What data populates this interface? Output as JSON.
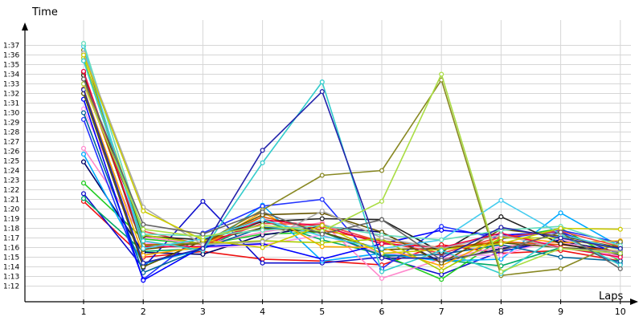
{
  "chart_data": {
    "type": "line",
    "title": "",
    "ylabel": "Time",
    "xlabel": "Laps",
    "grid": true,
    "legend": "none",
    "x": [
      1,
      2,
      3,
      4,
      5,
      6,
      7,
      8,
      9,
      10
    ],
    "ylim": [
      71,
      98
    ],
    "yticks": [
      {
        "v": 72,
        "label": "1:12"
      },
      {
        "v": 73,
        "label": "1:13"
      },
      {
        "v": 74,
        "label": "1:14"
      },
      {
        "v": 75,
        "label": "1:15"
      },
      {
        "v": 76,
        "label": "1:16"
      },
      {
        "v": 77,
        "label": "1:17"
      },
      {
        "v": 78,
        "label": "1:18"
      },
      {
        "v": 79,
        "label": "1:19"
      },
      {
        "v": 80,
        "label": "1:20"
      },
      {
        "v": 81,
        "label": "1:21"
      },
      {
        "v": 82,
        "label": "1:22"
      },
      {
        "v": 83,
        "label": "1:23"
      },
      {
        "v": 84,
        "label": "1:24"
      },
      {
        "v": 85,
        "label": "1:25"
      },
      {
        "v": 86,
        "label": "1:26"
      },
      {
        "v": 87,
        "label": "1:27"
      },
      {
        "v": 88,
        "label": "1:28"
      },
      {
        "v": 89,
        "label": "1:29"
      },
      {
        "v": 90,
        "label": "1:30"
      },
      {
        "v": 91,
        "label": "1:31"
      },
      {
        "v": 92,
        "label": "1:32"
      },
      {
        "v": 93,
        "label": "1:33"
      },
      {
        "v": 94,
        "label": "1:34"
      },
      {
        "v": 95,
        "label": "1:35"
      },
      {
        "v": 96,
        "label": "1:36"
      },
      {
        "v": 97,
        "label": "1:37"
      }
    ],
    "xticks": [
      "1",
      "2",
      "3",
      "4",
      "5",
      "6",
      "7",
      "8",
      "9",
      "10"
    ],
    "series": [
      {
        "color": "#ee1111",
        "values": [
          80.8,
          75.0,
          75.6,
          74.8,
          74.6,
          74.2,
          76.3,
          75.4,
          75.7,
          74.6
        ]
      },
      {
        "color": "#1111cc",
        "values": [
          81.6,
          73.9,
          80.8,
          74.4,
          74.4,
          75.0,
          73.2,
          75.6,
          76.8,
          74.3
        ]
      },
      {
        "color": "#00aa66",
        "values": [
          81.1,
          75.6,
          75.9,
          78.8,
          76.8,
          75.3,
          74.7,
          74.1,
          76.0,
          75.2
        ]
      },
      {
        "color": "#22cc22",
        "values": [
          82.7,
          76.9,
          76.3,
          77.4,
          77.6,
          75.3,
          72.7,
          76.9,
          78.0,
          74.6
        ]
      },
      {
        "color": "#000066",
        "values": [
          84.9,
          75.5,
          75.3,
          77.3,
          78.2,
          77.6,
          74.5,
          75.9,
          76.7,
          75.5
        ]
      },
      {
        "color": "#00aaff",
        "values": [
          85.7,
          74.3,
          75.8,
          80.4,
          74.6,
          75.4,
          74.6,
          74.8,
          79.6,
          76.1
        ]
      },
      {
        "color": "#ff88cc",
        "values": [
          86.3,
          77.1,
          76.3,
          77.6,
          78.6,
          72.8,
          74.8,
          76.1,
          76.6,
          75.1
        ]
      },
      {
        "color": "#2233ff",
        "values": [
          89.3,
          72.7,
          77.5,
          80.3,
          81.0,
          73.8,
          78.2,
          76.9,
          77.8,
          76.5
        ]
      },
      {
        "color": "#ff99ee",
        "values": [
          90.4,
          76.5,
          76.0,
          76.3,
          77.3,
          75.4,
          75.2,
          75.2,
          77.0,
          74.8
        ]
      },
      {
        "color": "#006699",
        "values": [
          90.0,
          73.4,
          75.9,
          78.1,
          77.7,
          75.1,
          75.3,
          76.3,
          75.0,
          74.6
        ]
      },
      {
        "color": "#0000ff",
        "values": [
          91.4,
          72.6,
          76.1,
          76.4,
          74.8,
          76.4,
          77.8,
          77.3,
          77.6,
          75.3
        ]
      },
      {
        "color": "#555500",
        "values": [
          92.0,
          74.0,
          76.7,
          78.0,
          77.6,
          75.8,
          75.9,
          76.5,
          76.0,
          75.6
        ]
      },
      {
        "color": "#ffaa00",
        "values": [
          92.5,
          75.2,
          76.1,
          79.7,
          76.1,
          76.0,
          74.1,
          77.2,
          76.5,
          76.7
        ]
      },
      {
        "color": "#ee4444",
        "values": [
          93.0,
          77.7,
          76.3,
          78.5,
          78.4,
          76.6,
          75.4,
          77.1,
          77.7,
          76.1
        ]
      },
      {
        "color": "#dd5500",
        "values": [
          93.5,
          76.3,
          76.4,
          79.2,
          77.8,
          76.7,
          76.0,
          76.6,
          76.3,
          75.6
        ]
      },
      {
        "color": "#222222",
        "values": [
          93.9,
          77.2,
          76.8,
          78.7,
          79.0,
          78.9,
          75.5,
          79.2,
          76.4,
          75.3
        ]
      },
      {
        "color": "#665500",
        "values": [
          94.2,
          75.8,
          76.5,
          79.4,
          79.6,
          77.6,
          74.4,
          77.9,
          77.2,
          76.0
        ]
      },
      {
        "color": "#ee0044",
        "values": [
          94.3,
          76.1,
          76.1,
          78.9,
          78.2,
          76.4,
          76.0,
          77.5,
          76.0,
          75.0
        ]
      },
      {
        "color": "#aacc00",
        "values": [
          95.7,
          77.3,
          76.4,
          76.7,
          76.5,
          76.9,
          73.6,
          77.0,
          77.0,
          75.8
        ]
      },
      {
        "color": "#888822",
        "values": [
          96.5,
          76.2,
          76.5,
          79.9,
          83.5,
          84.0,
          93.4,
          73.1,
          73.8,
          76.6
        ]
      },
      {
        "color": "#44ccee",
        "values": [
          96.9,
          75.9,
          76.9,
          78.9,
          77.2,
          75.9,
          76.8,
          80.9,
          77.4,
          75.8
        ]
      },
      {
        "color": "#66ddbb",
        "values": [
          97.2,
          77.4,
          77.2,
          77.8,
          78.3,
          77.3,
          76.8,
          77.8,
          78.2,
          76.2
        ]
      },
      {
        "color": "#aaaaaa",
        "values": [
          96.2,
          80.2,
          76.3,
          76.6,
          79.8,
          77.0,
          75.9,
          77.3,
          75.9,
          75.6
        ]
      },
      {
        "color": "#cccc00",
        "values": [
          96.0,
          79.8,
          76.8,
          76.0,
          78.3,
          75.4,
          75.8,
          76.4,
          78.0,
          77.9
        ]
      },
      {
        "color": "#33cccc",
        "values": [
          95.4,
          76.7,
          75.7,
          84.8,
          93.2,
          73.5,
          75.7,
          73.3,
          77.3,
          74.2
        ]
      },
      {
        "color": "#2222aa",
        "values": [
          92.4,
          74.4,
          75.9,
          86.1,
          92.2,
          74.9,
          74.9,
          78.1,
          77.0,
          75.9
        ]
      },
      {
        "color": "#aadd44",
        "values": [
          93.0,
          77.9,
          77.1,
          78.3,
          77.7,
          80.8,
          94.0,
          73.5,
          75.9,
          75.4
        ]
      },
      {
        "color": "#666666",
        "values": [
          93.5,
          78.4,
          77.4,
          79.7,
          77.4,
          78.9,
          74.7,
          75.7,
          77.6,
          73.8
        ]
      }
    ]
  }
}
